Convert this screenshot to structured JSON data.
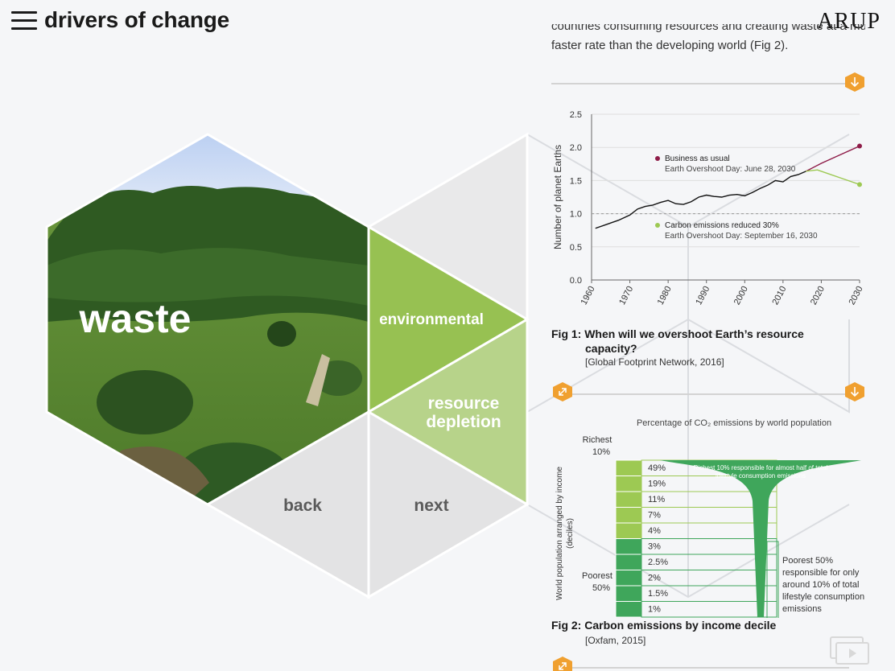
{
  "header": {
    "title": "drivers of change",
    "logo": "ARUP",
    "menu_icon": "hamburger-menu-icon"
  },
  "hexnav": {
    "main_label": "waste",
    "environmental_label": "environmental",
    "resource_label_line1": "resource",
    "resource_label_line2": "depletion",
    "back_label": "back",
    "next_label": "next"
  },
  "panel": {
    "intro_line1": "countries consuming resources and creating waste at a much",
    "intro_line2": "faster rate than the developing world (Fig 2).",
    "fig1_caption_line1": "Fig 1: When will we overshoot Earth’s resource",
    "fig1_caption_line2": "capacity?",
    "fig1_source": "[Global Footprint Network, 2016]",
    "fig2_caption": "Fig 2: Carbon emissions by income decile",
    "fig2_source": "[Oxfam, 2015]"
  },
  "colors": {
    "accent_orange": "#f0a030",
    "green_dark": "#3fa65b",
    "green_light": "#9dc953",
    "maroon": "#8e1c48"
  },
  "chart_data": [
    {
      "type": "line",
      "ylabel": "Number of planet Earths",
      "ylim": [
        0,
        2.5
      ],
      "yticks": [
        "0.0",
        "0.5",
        "1.0",
        "1.5",
        "2.0",
        "2.5"
      ],
      "xlim": [
        1960,
        2030
      ],
      "xticks": [
        "1960",
        "1970",
        "1980",
        "1990",
        "2000",
        "2010",
        "2020",
        "2030"
      ],
      "reference_line": 1.0,
      "series": [
        {
          "x": [
            1961,
            1964,
            1967,
            1970,
            1972,
            1974,
            1976,
            1978,
            1980,
            1982,
            1984,
            1986,
            1988,
            1990,
            1992,
            1994,
            1996,
            1998,
            2000,
            2002,
            2004,
            2006,
            2008,
            2010,
            2012,
            2014,
            2016
          ],
          "y": [
            0.78,
            0.84,
            0.9,
            0.98,
            1.07,
            1.11,
            1.13,
            1.17,
            1.2,
            1.15,
            1.14,
            1.18,
            1.25,
            1.28,
            1.26,
            1.25,
            1.28,
            1.29,
            1.27,
            1.32,
            1.38,
            1.43,
            1.5,
            1.48,
            1.56,
            1.59,
            1.64
          ],
          "color": "#111111"
        },
        {
          "name": "Business as usual",
          "x": [
            2016,
            2020,
            2025,
            2030
          ],
          "y": [
            1.64,
            1.76,
            1.89,
            2.02
          ],
          "color": "#8e1c48"
        },
        {
          "name": "Carbon emissions reduced 30%",
          "x": [
            2016,
            2019,
            2022,
            2026,
            2030
          ],
          "y": [
            1.64,
            1.66,
            1.6,
            1.52,
            1.44
          ],
          "color": "#9dc953"
        }
      ],
      "annotations": [
        {
          "title": "Business as usual",
          "text": "Earth Overshoot Day: June 28, 2030"
        },
        {
          "title": "Carbon emissions reduced 30%",
          "text": "Earth Overshoot Day: September 16, 2030"
        }
      ]
    },
    {
      "type": "table",
      "title": "Percentage of CO₂ emissions by world population",
      "ylabel_line1": "World population arranged by income",
      "ylabel_line2": "(deciles)",
      "group_labels": {
        "richest_line1": "Richest",
        "richest_line2": "10%",
        "poorest_line1": "Poorest",
        "poorest_line2": "50%"
      },
      "deciles": [
        "49%",
        "19%",
        "11%",
        "7%",
        "4%",
        "3%",
        "2.5%",
        "2%",
        "1.5%",
        "1%"
      ],
      "values": [
        49,
        19,
        11,
        7,
        4,
        3,
        2.5,
        2,
        1.5,
        1
      ],
      "annotation_top_line1": "Richest 10% responsible for almost half of total",
      "annotation_top_line2": "lifestyle consumption emissions",
      "annotation_bottom": [
        "Poorest 50%",
        "responsible for only",
        "around 10% of total",
        "lifestyle consumption",
        "emissions"
      ]
    }
  ]
}
